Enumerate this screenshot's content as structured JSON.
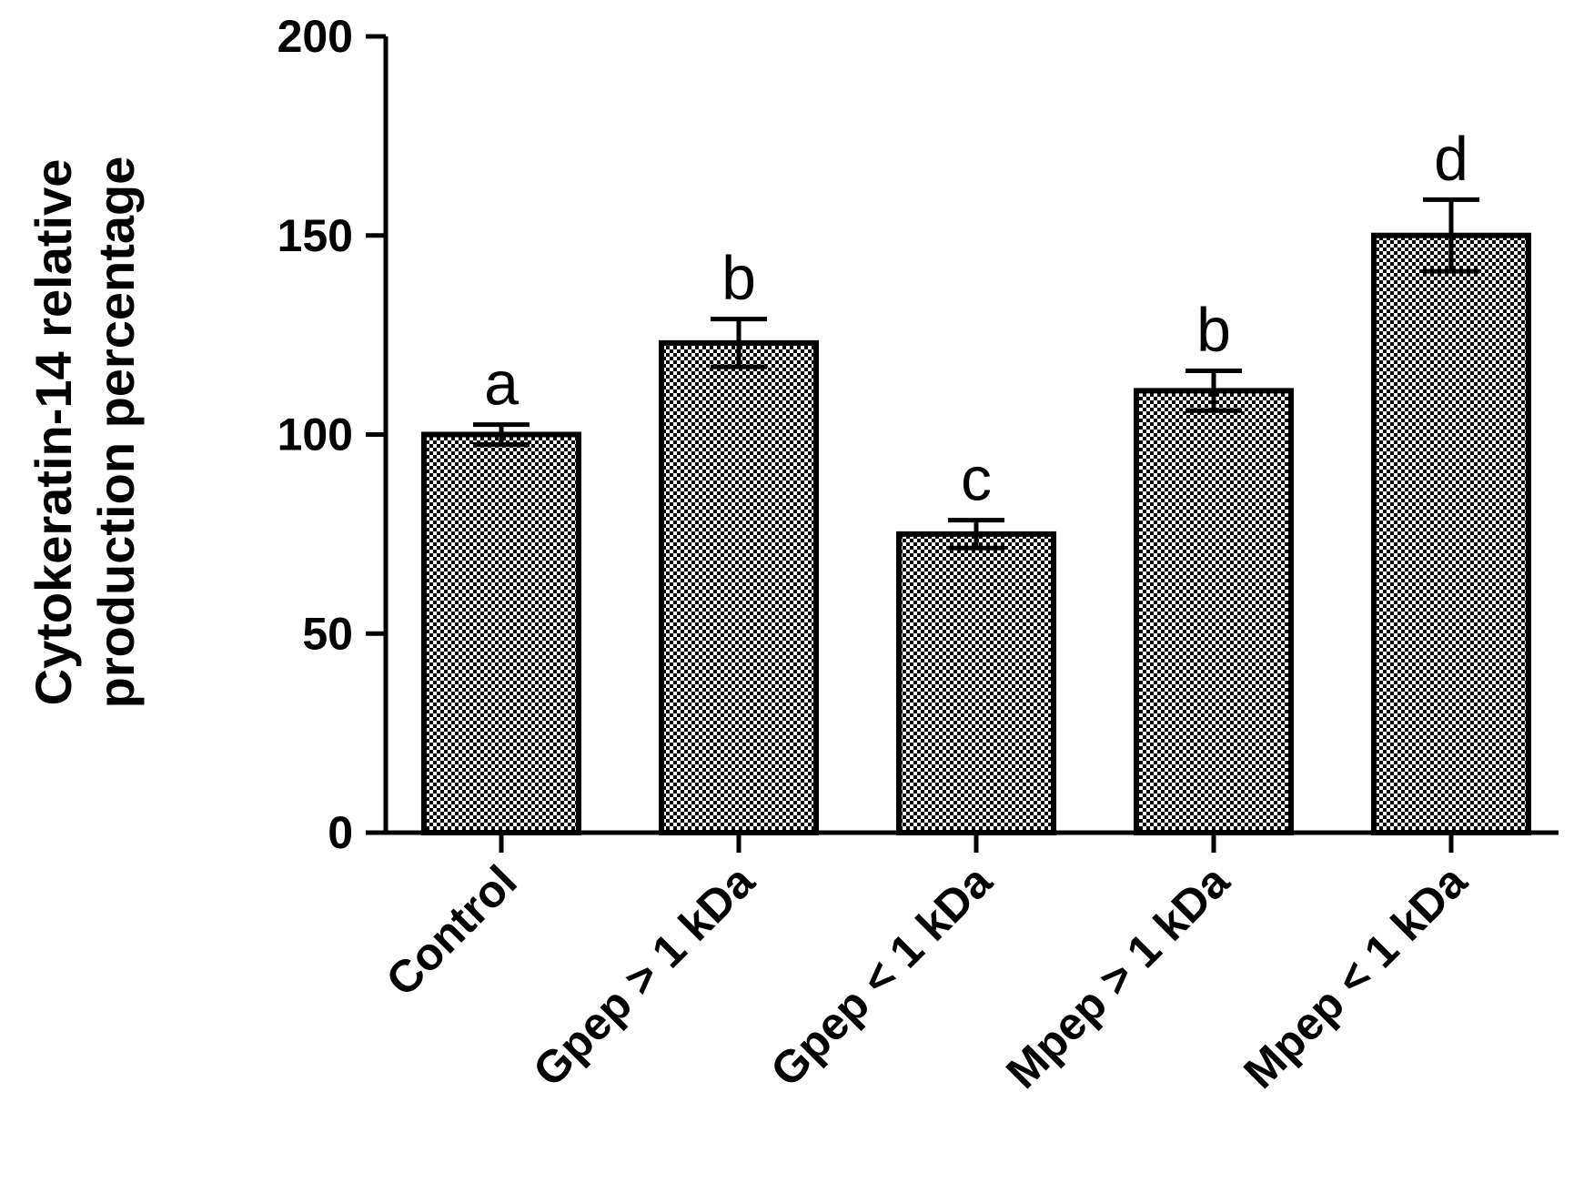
{
  "chart_data": {
    "type": "bar",
    "title": "",
    "xlabel": "",
    "ylabel_lines": [
      "Cytokeratin-14 relative",
      "production percentage"
    ],
    "categories": [
      "Control",
      "Gpep > 1 kDa",
      "Gpep < 1 kDa",
      "Mpep > 1 kDa",
      "Mpep < 1 kDa"
    ],
    "values": [
      100,
      123,
      75,
      111,
      150
    ],
    "errors": [
      2.5,
      6,
      3.5,
      5,
      9
    ],
    "significance_letters": [
      "a",
      "b",
      "c",
      "b",
      "d"
    ],
    "ylim": [
      0,
      200
    ],
    "yticks": [
      0,
      50,
      100,
      150,
      200
    ],
    "ytick_labels": [
      "0",
      "50",
      "100",
      "150",
      "200"
    ],
    "grid": false,
    "bar_fill": "checkerboard",
    "colors": {
      "ink": "#000000",
      "checker_light": "#ffffff",
      "checker_dark": "#000000"
    }
  }
}
